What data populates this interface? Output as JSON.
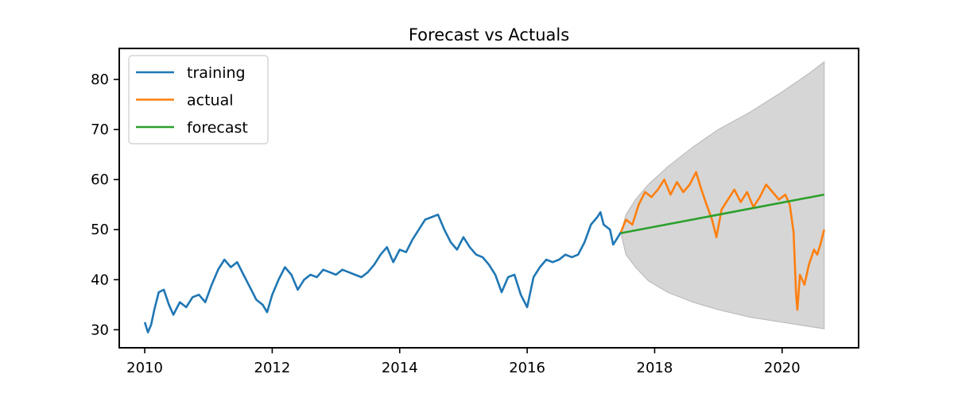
{
  "chart_data": {
    "type": "line",
    "title": "Forecast vs Actuals",
    "xlabel": "",
    "ylabel": "",
    "xlim": [
      2009.6,
      2021.2
    ],
    "ylim": [
      26.4,
      86.2
    ],
    "x_ticks": [
      2010,
      2012,
      2014,
      2016,
      2018,
      2020
    ],
    "x_tick_labels": [
      "2010",
      "2012",
      "2014",
      "2016",
      "2018",
      "2020"
    ],
    "y_ticks": [
      30,
      40,
      50,
      60,
      70,
      80
    ],
    "y_tick_labels": [
      "30",
      "40",
      "50",
      "60",
      "70",
      "80"
    ],
    "grid": false,
    "legend": {
      "position": "top-left",
      "entries": [
        {
          "label": "training",
          "color": "#1f77b4"
        },
        {
          "label": "actual",
          "color": "#ff7f0e"
        },
        {
          "label": "forecast",
          "color": "#2ca02c"
        }
      ]
    },
    "series": [
      {
        "name": "training",
        "color": "#1f77b4",
        "x": [
          2010.0,
          2010.05,
          2010.1,
          2010.15,
          2010.22,
          2010.3,
          2010.38,
          2010.45,
          2010.55,
          2010.65,
          2010.75,
          2010.85,
          2010.95,
          2011.05,
          2011.15,
          2011.25,
          2011.35,
          2011.45,
          2011.55,
          2011.65,
          2011.75,
          2011.85,
          2011.92,
          2012.0,
          2012.1,
          2012.2,
          2012.3,
          2012.4,
          2012.5,
          2012.6,
          2012.7,
          2012.8,
          2012.9,
          2013.0,
          2013.1,
          2013.2,
          2013.3,
          2013.4,
          2013.5,
          2013.6,
          2013.7,
          2013.8,
          2013.9,
          2014.0,
          2014.1,
          2014.2,
          2014.3,
          2014.4,
          2014.5,
          2014.6,
          2014.7,
          2014.8,
          2014.9,
          2015.0,
          2015.1,
          2015.2,
          2015.3,
          2015.4,
          2015.5,
          2015.6,
          2015.7,
          2015.8,
          2015.9,
          2016.0,
          2016.05,
          2016.1,
          2016.2,
          2016.3,
          2016.4,
          2016.5,
          2016.6,
          2016.7,
          2016.8,
          2016.9,
          2017.0,
          2017.1,
          2017.15,
          2017.2,
          2017.3,
          2017.35,
          2017.4,
          2017.47
        ],
        "y": [
          31.5,
          29.5,
          31.0,
          34.0,
          37.5,
          38.0,
          35.0,
          33.0,
          35.5,
          34.5,
          36.5,
          37.0,
          35.5,
          39.0,
          42.0,
          44.0,
          42.5,
          43.5,
          41.0,
          38.5,
          36.0,
          35.0,
          33.5,
          37.0,
          40.0,
          42.5,
          41.0,
          38.0,
          40.0,
          41.0,
          40.5,
          42.0,
          41.5,
          41.0,
          42.0,
          41.5,
          41.0,
          40.5,
          41.5,
          43.0,
          45.0,
          46.5,
          43.5,
          46.0,
          45.5,
          48.0,
          50.0,
          52.0,
          52.5,
          53.0,
          50.0,
          47.5,
          46.0,
          48.5,
          46.5,
          45.0,
          44.5,
          43.0,
          41.0,
          37.5,
          40.5,
          41.0,
          37.0,
          34.5,
          37.5,
          40.5,
          42.5,
          44.0,
          43.5,
          44.0,
          45.0,
          44.5,
          45.0,
          47.5,
          51.0,
          52.5,
          53.5,
          51.0,
          50.0,
          47.0,
          48.0,
          49.5
        ]
      },
      {
        "name": "actual",
        "color": "#ff7f0e",
        "x": [
          2017.47,
          2017.55,
          2017.65,
          2017.75,
          2017.85,
          2017.95,
          2018.05,
          2018.15,
          2018.25,
          2018.35,
          2018.45,
          2018.55,
          2018.65,
          2018.72,
          2018.8,
          2018.9,
          2018.97,
          2019.05,
          2019.15,
          2019.25,
          2019.35,
          2019.45,
          2019.55,
          2019.65,
          2019.75,
          2019.85,
          2019.95,
          2020.05,
          2020.12,
          2020.18,
          2020.22,
          2020.24,
          2020.28,
          2020.35,
          2020.42,
          2020.5,
          2020.55,
          2020.6,
          2020.66
        ],
        "y": [
          49.5,
          52.0,
          51.0,
          55.0,
          57.5,
          56.5,
          58.0,
          60.0,
          57.0,
          59.5,
          57.5,
          59.0,
          61.5,
          58.5,
          55.5,
          52.0,
          48.5,
          54.0,
          56.0,
          58.0,
          55.5,
          57.5,
          54.5,
          56.5,
          59.0,
          57.5,
          56.0,
          57.0,
          55.0,
          49.5,
          37.0,
          34.0,
          41.0,
          39.0,
          43.0,
          46.0,
          45.0,
          47.0,
          50.0
        ]
      },
      {
        "name": "forecast",
        "color": "#2ca02c",
        "x": [
          2017.47,
          2020.66
        ],
        "y": [
          49.3,
          57.0
        ]
      }
    ],
    "confidence_band": {
      "color": "#d6d6d6",
      "x": [
        2017.47,
        2017.55,
        2017.7,
        2017.9,
        2018.2,
        2018.6,
        2019.0,
        2019.5,
        2020.0,
        2020.4,
        2020.66
      ],
      "upper": [
        49.3,
        53.0,
        56.0,
        59.0,
        62.5,
        66.5,
        70.0,
        73.5,
        77.5,
        81.0,
        83.5
      ],
      "lower": [
        49.3,
        45.0,
        42.5,
        39.8,
        37.5,
        35.5,
        34.0,
        32.5,
        31.5,
        30.7,
        30.2
      ]
    }
  }
}
